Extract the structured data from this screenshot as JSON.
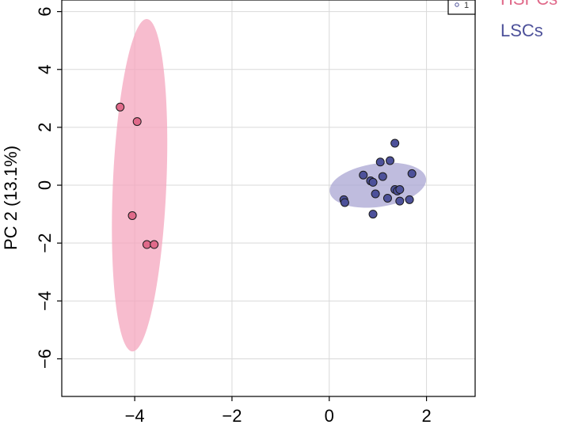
{
  "chart_data": {
    "type": "scatter",
    "xlabel": "",
    "ylabel": "PC 2 (13.1%)",
    "xlim": [
      -5.5,
      3.0
    ],
    "ylim": [
      -7.3,
      6.4
    ],
    "x_ticks": [
      -4,
      -2,
      0,
      2
    ],
    "y_ticks": [
      6,
      4,
      2,
      0,
      -2,
      -4,
      -6
    ],
    "x_tick_labels": [
      "−4",
      "−2",
      "0",
      "2"
    ],
    "y_tick_labels": [
      "6",
      "4",
      "2",
      "0",
      "−2",
      "−4",
      "−6"
    ],
    "grid": true,
    "legend_position": "right, outside top",
    "legend_box_label": "1",
    "series": [
      {
        "name": "HSPCs",
        "color": "#e06a8a",
        "fill_color": "#f4a6bd",
        "ellipse": {
          "cx": -3.9,
          "cy": 0.0,
          "rx": 5.75,
          "ry": 0.55,
          "angle_deg": 87.5
        },
        "points": [
          {
            "x": -4.3,
            "y": 2.7
          },
          {
            "x": -3.95,
            "y": 2.2
          },
          {
            "x": -4.05,
            "y": -1.05
          },
          {
            "x": -3.75,
            "y": -2.05
          },
          {
            "x": -3.6,
            "y": -2.05
          }
        ]
      },
      {
        "name": "LSCs",
        "color": "#4d519a",
        "fill_color": "#a9a6d3",
        "ellipse": {
          "cx": 1.0,
          "cy": 0.0,
          "rx": 2.0,
          "ry": 1.5,
          "angle_deg": 8
        },
        "points": [
          {
            "x": 1.35,
            "y": 1.45
          },
          {
            "x": 1.05,
            "y": 0.8
          },
          {
            "x": 1.25,
            "y": 0.85
          },
          {
            "x": 0.7,
            "y": 0.35
          },
          {
            "x": 1.1,
            "y": 0.3
          },
          {
            "x": 1.7,
            "y": 0.4
          },
          {
            "x": 0.85,
            "y": 0.15
          },
          {
            "x": 0.9,
            "y": 0.1
          },
          {
            "x": 0.95,
            "y": -0.3
          },
          {
            "x": 1.35,
            "y": -0.15
          },
          {
            "x": 1.4,
            "y": -0.2
          },
          {
            "x": 1.45,
            "y": -0.15
          },
          {
            "x": 1.2,
            "y": -0.45
          },
          {
            "x": 1.45,
            "y": -0.55
          },
          {
            "x": 1.65,
            "y": -0.5
          },
          {
            "x": 0.3,
            "y": -0.5
          },
          {
            "x": 0.32,
            "y": -0.6
          },
          {
            "x": 0.9,
            "y": -1.0
          }
        ]
      }
    ]
  }
}
